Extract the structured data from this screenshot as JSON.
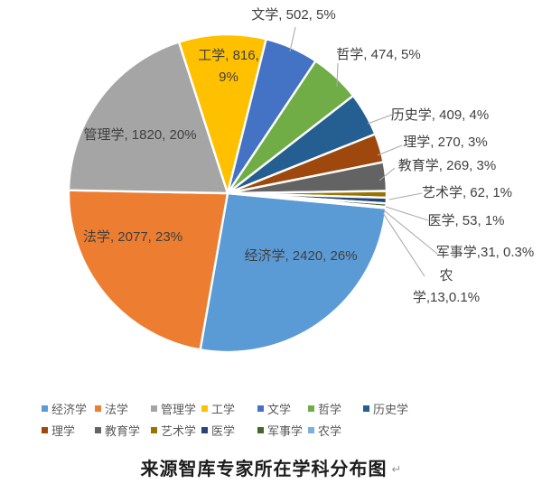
{
  "chart_data": {
    "type": "pie",
    "title": "来源智库专家所在学科分布图",
    "title_return_mark": "↵",
    "legend_position": "bottom",
    "total": 9216,
    "start_angle_deg": 95.4,
    "leader_line_color": "#ababab",
    "slice_border_color": "#ffffff",
    "slices": [
      {
        "name": "经济学",
        "value": 2420,
        "pct": "26%",
        "color": "#5B9BD5",
        "label": "经济学, 2420, 26%"
      },
      {
        "name": "法学",
        "value": 2077,
        "pct": "23%",
        "color": "#ED7D31",
        "label": "法学, 2077, 23%"
      },
      {
        "name": "管理学",
        "value": 1820,
        "pct": "20%",
        "color": "#A5A5A5",
        "label": "管理学, 1820, 20%"
      },
      {
        "name": "工学",
        "value": 816,
        "pct": "9%",
        "color": "#FFC000",
        "label": "工学, 816,",
        "label2": "9%"
      },
      {
        "name": "文学",
        "value": 502,
        "pct": "5%",
        "color": "#4472C4",
        "label": "文学, 502, 5%"
      },
      {
        "name": "哲学",
        "value": 474,
        "pct": "5%",
        "color": "#70AD47",
        "label": "哲学, 474, 5%"
      },
      {
        "name": "历史学",
        "value": 409,
        "pct": "4%",
        "color": "#255E91",
        "label": "历史学, 409, 4%"
      },
      {
        "name": "理学",
        "value": 270,
        "pct": "3%",
        "color": "#9E480E",
        "label": "理学, 270, 3%"
      },
      {
        "name": "教育学",
        "value": 269,
        "pct": "3%",
        "color": "#636363",
        "label": "教育学, 269, 3%"
      },
      {
        "name": "艺术学",
        "value": 62,
        "pct": "1%",
        "color": "#997300",
        "label": "艺术学, 62, 1%"
      },
      {
        "name": "医学",
        "value": 53,
        "pct": "1%",
        "color": "#264478",
        "label": "医学, 53, 1%"
      },
      {
        "name": "军事学",
        "value": 31,
        "pct": "0.3%",
        "color": "#43682B",
        "label": "军事学,31, 0.3%"
      },
      {
        "name": "农学",
        "value": 13,
        "pct": "0.1%",
        "color": "#7CAFDD",
        "label": "农",
        "label2": "学,13,0.1%"
      }
    ]
  }
}
